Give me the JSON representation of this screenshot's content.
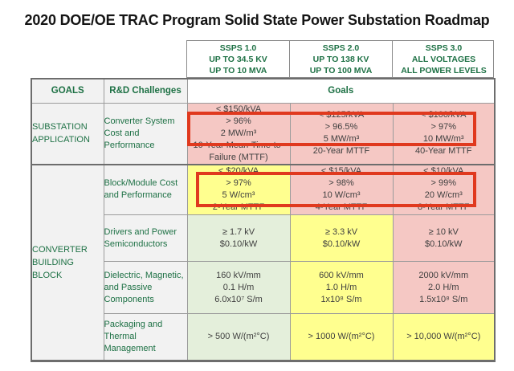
{
  "title": "2020 DOE/OE TRAC Program Solid State Power Substation Roadmap",
  "phases": [
    {
      "lines": [
        "SSPS 1.0",
        "UP TO 34.5 KV",
        "UP TO 10 MVA"
      ]
    },
    {
      "lines": [
        "SSPS 2.0",
        "UP TO 138 KV",
        "UP TO 100 MVA"
      ]
    },
    {
      "lines": [
        "SSPS 3.0",
        "ALL VOLTAGES",
        "ALL POWER LEVELS"
      ]
    }
  ],
  "header": {
    "goals": "GOALS",
    "challenges": "R&D Challenges",
    "goals_span": "Goals"
  },
  "rows": [
    {
      "group": "SUBSTATION APPLICATION",
      "challenge": "Converter System Cost and Performance",
      "cells": [
        {
          "tone": "pink",
          "lines": [
            "< $150/kVA",
            "> 96%",
            "2 MW/m³",
            "10-Year Mean-Time-to-Failure (MTTF)"
          ]
        },
        {
          "tone": "pink",
          "lines": [
            "< $125/kVA",
            "> 96.5%",
            "5 MW/m³",
            "20-Year MTTF"
          ]
        },
        {
          "tone": "pink",
          "lines": [
            "< $100/kVA",
            "> 97%",
            "10 MW/m³",
            "40-Year MTTF"
          ]
        }
      ]
    },
    {
      "group": "CONVERTER BUILDING BLOCK",
      "challenge": "Block/Module Cost and Performance",
      "cells": [
        {
          "tone": "yellow",
          "lines": [
            "< $20/kVA",
            "> 97%",
            "5 W/cm³",
            "2-Year MTTF"
          ]
        },
        {
          "tone": "pink",
          "lines": [
            "< $15/kVA",
            "> 98%",
            "10 W/cm³",
            "4-Year MTTF"
          ]
        },
        {
          "tone": "pink",
          "lines": [
            "< $10/kVA",
            "> 99%",
            "20 W/cm³",
            "8-Year MTTF"
          ]
        }
      ]
    },
    {
      "challenge": "Drivers and Power Semiconductors",
      "cells": [
        {
          "tone": "green",
          "lines": [
            "≥ 1.7 kV",
            "$0.10/kW"
          ]
        },
        {
          "tone": "yellow",
          "lines": [
            "≥ 3.3 kV",
            "$0.10/kW"
          ]
        },
        {
          "tone": "pink",
          "lines": [
            "≥ 10 kV",
            "$0.10/kW"
          ]
        }
      ]
    },
    {
      "challenge": "Dielectric, Magnetic, and Passive Components",
      "cells": [
        {
          "tone": "green",
          "lines": [
            "160 kV/mm",
            "0.1 H/m",
            "6.0x10⁷ S/m"
          ]
        },
        {
          "tone": "yellow",
          "lines": [
            "600 kV/mm",
            "1.0 H/m",
            "1x10⁸ S/m"
          ]
        },
        {
          "tone": "pink",
          "lines": [
            "2000 kV/mm",
            "2.0 H/m",
            "1.5x10⁸ S/m"
          ]
        }
      ]
    },
    {
      "challenge": "Packaging and Thermal Management",
      "cells": [
        {
          "tone": "green",
          "lines": [
            "> 500 W/(m²°C)"
          ]
        },
        {
          "tone": "yellow",
          "lines": [
            "> 1000 W/(m²°C)"
          ]
        },
        {
          "tone": "yellow",
          "lines": [
            "> 10,000 W/(m²°C)"
          ]
        }
      ]
    }
  ],
  "colors": {
    "pink": "#f5c8c4",
    "yellow": "#ffff8f",
    "green": "#e4efdb",
    "grey": "#f2f2f2",
    "header_green": "#1e7145",
    "text": "#3f3f3f",
    "grid": "#9b9b9b",
    "frame": "#6d6d6d",
    "highlight": "#e0391e"
  },
  "chart_data": {
    "type": "table",
    "title": "2020 DOE/OE TRAC Program Solid State Power Substation Roadmap",
    "column_headers": [
      "GOALS",
      "R&D Challenges",
      "SSPS 1.0 UP TO 34.5 KV UP TO 10 MVA",
      "SSPS 2.0 UP TO 138 KV UP TO 100 MVA",
      "SSPS 3.0 ALL VOLTAGES ALL POWER LEVELS"
    ],
    "spanning_header": "Goals",
    "rows": [
      [
        "SUBSTATION APPLICATION",
        "Converter System Cost and Performance",
        "< $150/kVA, > 96%, 2 MW/m³, 10-Year Mean-Time-to-Failure (MTTF)",
        "< $125/kVA, > 96.5%, 5 MW/m³, 20-Year MTTF",
        "< $100/kVA, > 97%, 10 MW/m³, 40-Year MTTF"
      ],
      [
        "CONVERTER BUILDING BLOCK",
        "Block/Module Cost and Performance",
        "< $20/kVA, > 97%, 5 W/cm³, 2-Year MTTF",
        "< $15/kVA, > 98%, 10 W/cm³, 4-Year MTTF",
        "< $10/kVA, > 99%, 20 W/cm³, 8-Year MTTF"
      ],
      [
        "CONVERTER BUILDING BLOCK",
        "Drivers and Power Semiconductors",
        "≥ 1.7 kV, $0.10/kW",
        "≥ 3.3 kV, $0.10/kW",
        "≥ 10 kV, $0.10/kW"
      ],
      [
        "CONVERTER BUILDING BLOCK",
        "Dielectric, Magnetic, and Passive Components",
        "160 kV/mm, 0.1 H/m, 6.0x10⁷ S/m",
        "600 kV/mm, 1.0 H/m, 1x10⁸ S/m",
        "2000 kV/mm, 2.0 H/m, 1.5x10⁸ S/m"
      ],
      [
        "CONVERTER BUILDING BLOCK",
        "Packaging and Thermal Management",
        "> 500 W/(m²°C)",
        "> 1000 W/(m²°C)",
        "> 10,000 W/(m²°C)"
      ]
    ],
    "cell_tones": [
      [
        "pink",
        "pink",
        "pink"
      ],
      [
        "yellow",
        "pink",
        "pink"
      ],
      [
        "green",
        "yellow",
        "pink"
      ],
      [
        "green",
        "yellow",
        "pink"
      ],
      [
        "green",
        "yellow",
        "yellow"
      ]
    ]
  }
}
